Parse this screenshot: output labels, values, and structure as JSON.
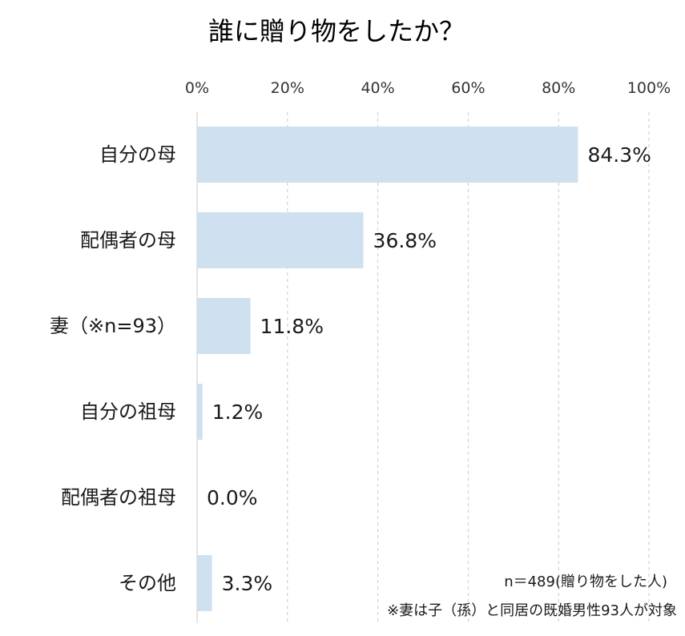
{
  "chart_data": {
    "type": "bar",
    "orientation": "horizontal",
    "title": "誰に贈り物をしたか？",
    "categories": [
      "自分の母",
      "配偶者の母",
      "妻（※n=93）",
      "自分の祖母",
      "配偶者の祖母",
      "その他"
    ],
    "values": [
      84.3,
      36.8,
      11.8,
      1.2,
      0.0,
      3.3
    ],
    "value_labels": [
      "84.3%",
      "36.8%",
      "11.8%",
      "1.2%",
      "0.0%",
      "3.3%"
    ],
    "xlim": [
      0,
      100
    ],
    "x_ticks": [
      0,
      20,
      40,
      60,
      80,
      100
    ],
    "x_tick_labels": [
      "0%",
      "20%",
      "40%",
      "60%",
      "80%",
      "100%"
    ],
    "xlabel": "",
    "ylabel": "",
    "grid": true,
    "bar_color": "#cfe0f1",
    "grid_color": "#c8c8c8",
    "notes": [
      "n＝489(贈り物をした人)",
      "※妻は子（孫）と同居の既婚男性93人が対象"
    ]
  }
}
